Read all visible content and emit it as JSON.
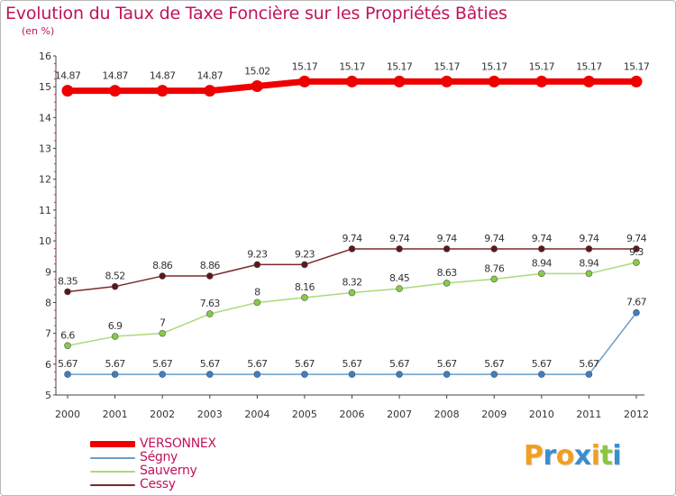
{
  "chart_data": {
    "type": "line",
    "title": "Evolution du Taux de Taxe Foncière sur les Propriétés Bâties",
    "ylabel": "(en %)",
    "xlabel": "",
    "ylim": [
      5,
      16
    ],
    "y_ticks": [
      "5",
      "6",
      "7",
      "8",
      "9",
      "10",
      "11",
      "12",
      "13",
      "14",
      "15",
      "16"
    ],
    "categories": [
      "2000",
      "2001",
      "2002",
      "2003",
      "2004",
      "2005",
      "2006",
      "2007",
      "2008",
      "2009",
      "2010",
      "2011",
      "2012"
    ],
    "series": [
      {
        "name": "VERSONNEX",
        "color": "#ee0000",
        "point_color": "#ee0000",
        "values": [
          14.87,
          14.87,
          14.87,
          14.87,
          15.02,
          15.17,
          15.17,
          15.17,
          15.17,
          15.17,
          15.17,
          15.17,
          15.17
        ],
        "labels": [
          "14.87",
          "14.87",
          "14.87",
          "14.87",
          "15.02",
          "15.17",
          "15.17",
          "15.17",
          "15.17",
          "15.17",
          "15.17",
          "15.17",
          "15.17"
        ]
      },
      {
        "name": "Ségny",
        "color": "#6b9ec8",
        "point_color": "#3d7fc0",
        "values": [
          5.67,
          5.67,
          5.67,
          5.67,
          5.67,
          5.67,
          5.67,
          5.67,
          5.67,
          5.67,
          5.67,
          5.67,
          7.67
        ],
        "labels": [
          "5.67",
          "5.67",
          "5.67",
          "5.67",
          "5.67",
          "5.67",
          "5.67",
          "5.67",
          "5.67",
          "5.67",
          "5.67",
          "5.67",
          "7.67"
        ]
      },
      {
        "name": "Sauverny",
        "color": "#a8dc78",
        "point_color": "#86cc44",
        "values": [
          6.6,
          6.9,
          7,
          7.63,
          8,
          8.16,
          8.32,
          8.45,
          8.63,
          8.76,
          8.94,
          8.94,
          9.3
        ],
        "labels": [
          "6.6",
          "6.9",
          "7",
          "7.63",
          "8",
          "8.16",
          "8.32",
          "8.45",
          "8.63",
          "8.76",
          "8.94",
          "8.94",
          "9.3"
        ]
      },
      {
        "name": "Cessy",
        "color": "#7a2a2a",
        "point_color": "#5e1717",
        "values": [
          8.35,
          8.52,
          8.86,
          8.86,
          9.23,
          9.23,
          9.74,
          9.74,
          9.74,
          9.74,
          9.74,
          9.74,
          9.74
        ],
        "labels": [
          "8.35",
          "8.52",
          "8.86",
          "8.86",
          "9.23",
          "9.23",
          "9.74",
          "9.74",
          "9.74",
          "9.74",
          "9.74",
          "9.74",
          "9.74"
        ]
      }
    ],
    "legend_position": "bottom-left",
    "grid": false
  },
  "logo": {
    "letters": [
      "P",
      "r",
      "o",
      "x",
      "i",
      "t",
      "i"
    ],
    "colors": [
      "#f0a020",
      "#3a8fd0",
      "#f0a020",
      "#3a8fd0",
      "#f0a020",
      "#8cc63f",
      "#3a8fd0"
    ]
  }
}
